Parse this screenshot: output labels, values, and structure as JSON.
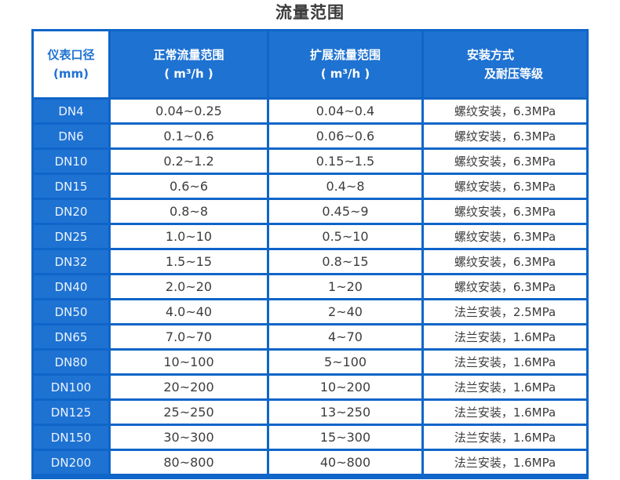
{
  "page": {
    "title": "流量范围"
  },
  "colors": {
    "table_fill_blue": "#1e72d2",
    "table_border_blue": "#0f65c8",
    "header_text_on_blue": "#ffffff",
    "diameter_header_text": "#1e72d2",
    "data_text": "#3d3d3d",
    "background": "#ffffff"
  },
  "chart_data": {
    "type": "table",
    "title": "流量范围",
    "header": {
      "diameter": [
        "仪表口径",
        "(mm)"
      ],
      "normal": [
        "正常流量范围",
        "( m³/h )"
      ],
      "extended": [
        "扩展流量范围",
        "( m³/h )"
      ],
      "installation": [
        "安装方式",
        "及耐压等级"
      ]
    },
    "columns_flat": [
      "仪表口径 (mm)",
      "正常流量范围 ( m³/h )",
      "扩展流量范围 ( m³/h )",
      "安装方式 及耐压等级"
    ],
    "rows": [
      [
        "DN4",
        "0.04~0.25",
        "0.04~0.4",
        "螺纹安装，6.3MPa"
      ],
      [
        "DN6",
        "0.1~0.6",
        "0.06~0.6",
        "螺纹安装，6.3MPa"
      ],
      [
        "DN10",
        "0.2~1.2",
        "0.15~1.5",
        "螺纹安装，6.3MPa"
      ],
      [
        "DN15",
        "0.6~6",
        "0.4~8",
        "螺纹安装，6.3MPa"
      ],
      [
        "DN20",
        "0.8~8",
        "0.45~9",
        "螺纹安装，6.3MPa"
      ],
      [
        "DN25",
        "1.0~10",
        "0.5~10",
        "螺纹安装，6.3MPa"
      ],
      [
        "DN32",
        "1.5~15",
        "0.8~15",
        "螺纹安装，6.3MPa"
      ],
      [
        "DN40",
        "2.0~20",
        "1~20",
        "螺纹安装，6.3MPa"
      ],
      [
        "DN50",
        "4.0~40",
        "2~40",
        "法兰安装，2.5MPa"
      ],
      [
        "DN65",
        "7.0~70",
        "4~70",
        "法兰安装，1.6MPa"
      ],
      [
        "DN80",
        "10~100",
        "5~100",
        "法兰安装，1.6MPa"
      ],
      [
        "DN100",
        "20~200",
        "10~200",
        "法兰安装，1.6MPa"
      ],
      [
        "DN125",
        "25~250",
        "13~250",
        "法兰安装，1.6MPa"
      ],
      [
        "DN150",
        "30~300",
        "15~300",
        "法兰安装，1.6MPa"
      ],
      [
        "DN200",
        "80~800",
        "40~800",
        "法兰安装，1.6MPa"
      ]
    ]
  }
}
